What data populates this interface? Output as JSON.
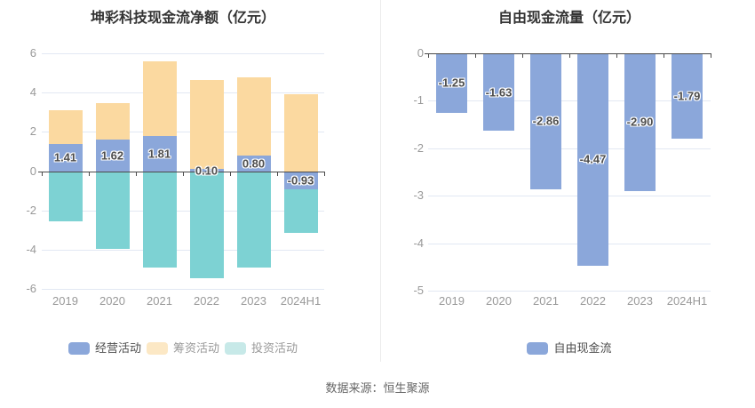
{
  "footer": {
    "source_text": "数据来源：恒生聚源"
  },
  "colors": {
    "bar_blue": "#8BA7DA",
    "bar_orange": "#FBD9A0",
    "bar_teal": "#7DD2D3",
    "legend_orange_pale": "#FCE8C5",
    "legend_teal_pale": "#C7E9E8",
    "axis_line": "#4a4a4a",
    "gridline": "#e2e7f3",
    "tick_label": "#999999"
  },
  "chart_data": [
    {
      "type": "bar",
      "stacked": true,
      "title": "坤彩科技现金流净额（亿元）",
      "xlabel": "",
      "ylabel": "",
      "ylim": [
        -6,
        6
      ],
      "y_ticks": [
        6,
        4,
        2,
        0,
        -2,
        -4,
        -6
      ],
      "grid": true,
      "legend_position": "bottom",
      "categories": [
        "2019",
        "2020",
        "2021",
        "2022",
        "2023",
        "2024H1"
      ],
      "series": [
        {
          "name": "经营活动",
          "color": "#8BA7DA",
          "values": [
            1.41,
            1.62,
            1.81,
            0.1,
            0.8,
            -0.93
          ],
          "labels": [
            "1.41",
            "1.62",
            "1.81",
            "0.10",
            "0.80",
            "-0.93"
          ]
        },
        {
          "name": "筹资活动",
          "color": "#FBD9A0",
          "values": [
            1.7,
            1.83,
            3.79,
            4.56,
            3.99,
            3.94
          ],
          "labels": null
        },
        {
          "name": "投资活动",
          "color": "#7DD2D3",
          "values": [
            -2.55,
            -3.94,
            -4.9,
            -5.45,
            -4.9,
            -2.19
          ],
          "labels": null
        }
      ],
      "legend": [
        {
          "label": "经营活动",
          "swatch": "#8BA7DA",
          "text_color": "#4d4d4d"
        },
        {
          "label": "筹资活动",
          "swatch": "#FCE8C5",
          "text_color": "#999999"
        },
        {
          "label": "投资活动",
          "swatch": "#C7E9E8",
          "text_color": "#999999"
        }
      ]
    },
    {
      "type": "bar",
      "stacked": false,
      "title": "自由现金流量（亿元）",
      "xlabel": "",
      "ylabel": "",
      "ylim": [
        -5,
        0
      ],
      "y_ticks": [
        0,
        -1,
        -2,
        -3,
        -4,
        -5
      ],
      "grid": true,
      "legend_position": "bottom",
      "categories": [
        "2019",
        "2020",
        "2021",
        "2022",
        "2023",
        "2024H1"
      ],
      "series": [
        {
          "name": "自由现金流",
          "color": "#8BA7DA",
          "values": [
            -1.25,
            -1.63,
            -2.86,
            -4.47,
            -2.9,
            -1.79
          ],
          "labels": [
            "-1.25",
            "-1.63",
            "-2.86",
            "-4.47",
            "-2.90",
            "-1.79"
          ]
        }
      ],
      "legend": [
        {
          "label": "自由现金流",
          "swatch": "#8BA7DA",
          "text_color": "#4d4d4d"
        }
      ]
    }
  ]
}
